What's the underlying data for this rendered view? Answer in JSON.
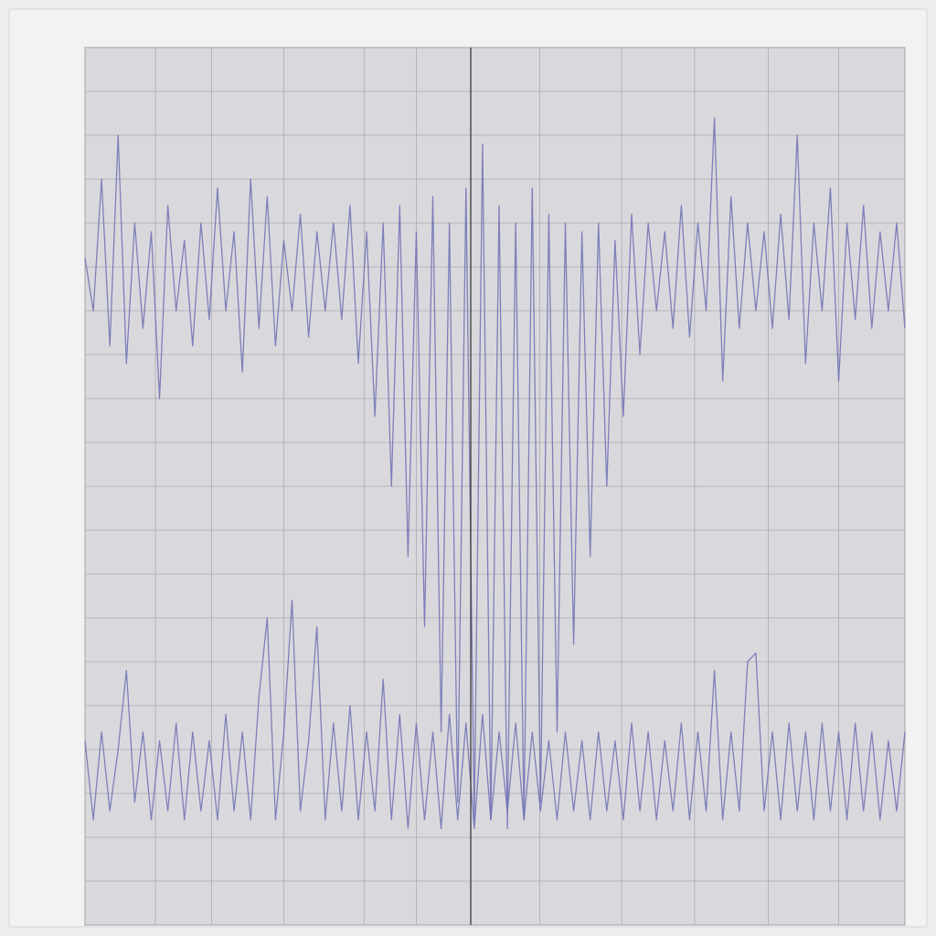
{
  "chart_data": {
    "type": "line",
    "x": [
      0,
      1,
      2,
      3,
      4,
      5,
      6,
      7,
      8,
      9,
      10,
      11,
      12,
      13,
      14,
      15,
      16,
      17,
      18,
      19,
      20,
      21,
      22,
      23,
      24,
      25,
      26,
      27,
      28,
      29,
      30,
      31,
      32,
      33,
      34,
      35,
      36,
      37,
      38,
      39,
      40,
      41,
      42,
      43,
      44,
      45,
      46,
      47,
      48,
      49,
      50,
      51,
      52,
      53,
      54,
      55,
      56,
      57,
      58,
      59,
      60,
      61,
      62,
      63,
      64,
      65,
      66,
      67,
      68,
      69,
      70,
      71,
      72,
      73,
      74,
      75,
      76,
      77,
      78,
      79,
      80,
      81,
      82,
      83,
      84,
      85,
      86,
      87,
      88,
      89,
      90,
      91,
      92,
      93,
      94,
      95,
      96,
      97,
      98,
      99
    ],
    "series": [
      {
        "color": "#6e6eb4",
        "values": [
          76,
          70,
          85,
          66,
          90,
          64,
          80,
          68,
          79,
          60,
          82,
          70,
          78,
          66,
          80,
          69,
          84,
          70,
          79,
          63,
          85,
          68,
          83,
          66,
          78,
          70,
          81,
          67,
          79,
          70,
          80,
          69,
          82,
          64,
          79,
          58,
          80,
          50,
          82,
          42,
          79,
          34,
          83,
          22,
          80,
          14,
          84,
          12,
          89,
          12,
          82,
          11,
          80,
          12,
          84,
          14,
          81,
          22,
          80,
          32,
          79,
          42,
          80,
          50,
          78,
          58,
          81,
          65,
          80,
          70,
          79,
          68,
          82,
          67,
          80,
          70,
          92,
          62,
          83,
          68,
          80,
          70,
          79,
          68,
          81,
          69,
          90,
          64,
          80,
          70,
          84,
          62,
          80,
          69,
          82,
          68,
          79,
          70,
          80,
          68
        ]
      },
      {
        "color": "#6e6eb4",
        "values": [
          21,
          12,
          22,
          13,
          20,
          29,
          14,
          22,
          12,
          21,
          13,
          23,
          12,
          22,
          13,
          21,
          12,
          24,
          13,
          22,
          12,
          26,
          35,
          12,
          22,
          37,
          13,
          21,
          34,
          12,
          23,
          13,
          25,
          12,
          22,
          13,
          28,
          12,
          24,
          11,
          23,
          12,
          22,
          11,
          24,
          12,
          23,
          11,
          24,
          12,
          22,
          13,
          23,
          12,
          22,
          13,
          21,
          12,
          22,
          13,
          21,
          12,
          22,
          13,
          21,
          12,
          23,
          13,
          22,
          12,
          21,
          13,
          23,
          12,
          22,
          13,
          29,
          12,
          22,
          13,
          30,
          31,
          13,
          22,
          12,
          23,
          13,
          22,
          12,
          23,
          13,
          22,
          12,
          23,
          13,
          22,
          12,
          21,
          13,
          22
        ]
      }
    ],
    "xlim": [
      0,
      99
    ],
    "ylim": [
      0,
      100
    ],
    "xticks": [
      0,
      8.5,
      15.3,
      24,
      33.7,
      40,
      46.6,
      54.9,
      64.8,
      73.6,
      82.5,
      91,
      99
    ],
    "yticks": [
      0,
      5,
      10,
      15,
      20,
      25,
      30,
      35,
      40,
      45,
      50,
      55,
      60,
      65,
      70,
      75,
      80,
      85,
      90,
      95,
      100
    ],
    "grid": true
  }
}
